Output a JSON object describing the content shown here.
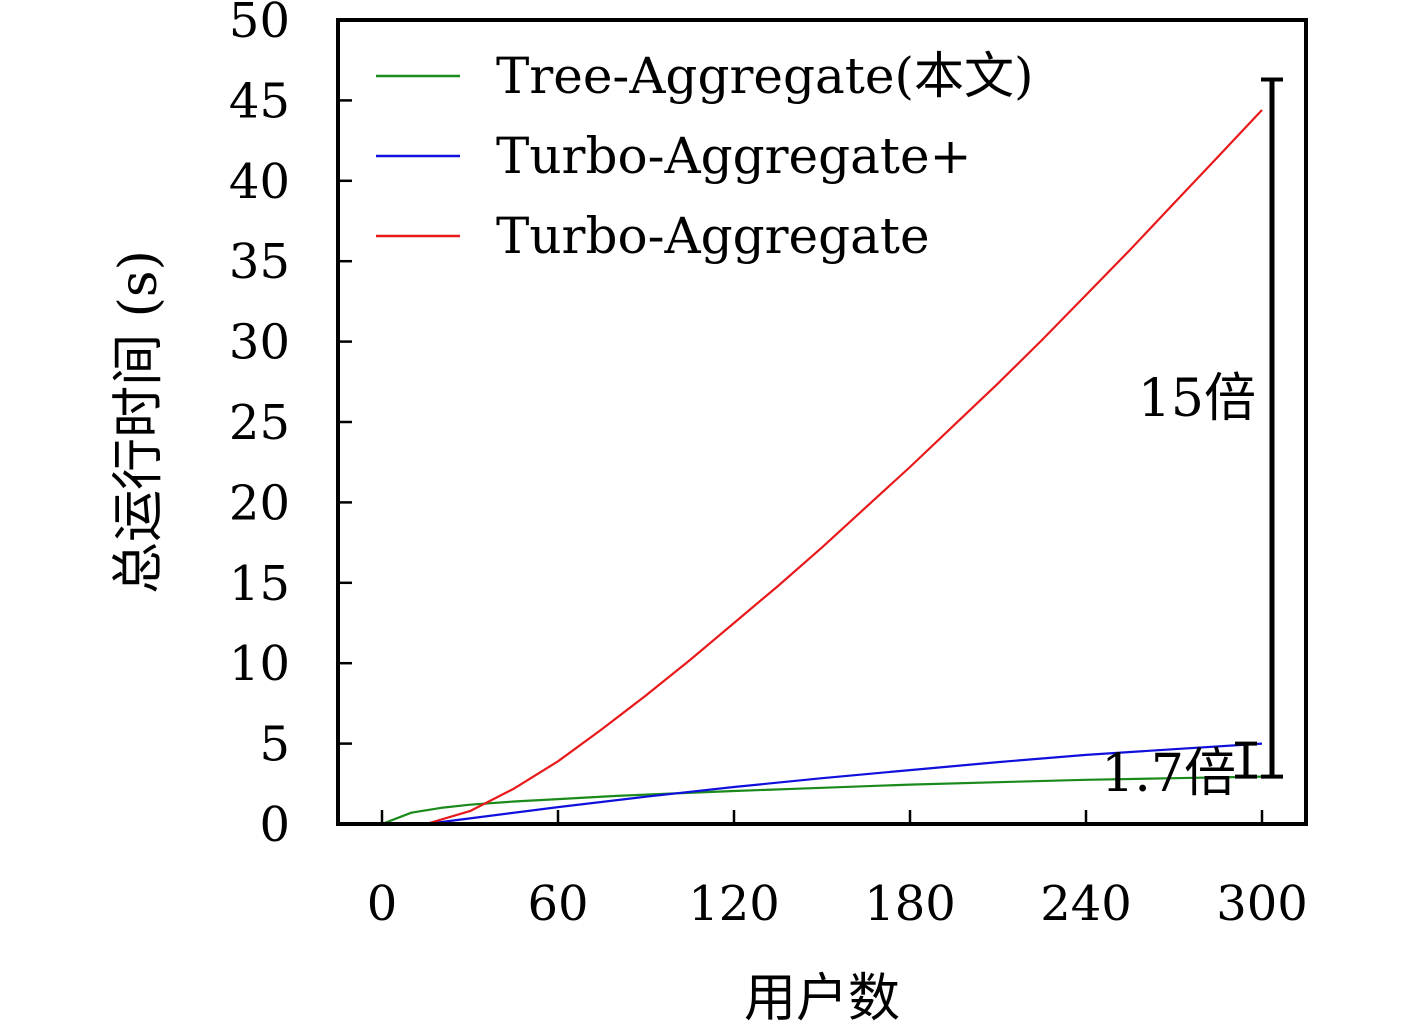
{
  "chart_data": {
    "type": "line",
    "xlabel": "用户数",
    "ylabel": "总运行时间 (s)",
    "xlim": [
      -15,
      315
    ],
    "ylim": [
      0,
      50
    ],
    "xticks": [
      0,
      60,
      120,
      180,
      240,
      300
    ],
    "yticks": [
      0,
      5,
      10,
      15,
      20,
      25,
      30,
      35,
      40,
      45,
      50
    ],
    "grid": false,
    "legend_position": "top-left",
    "series": [
      {
        "name": "Tree-Aggregate(本文)",
        "color": "#1a8a1a",
        "x": [
          0,
          10,
          20,
          30,
          45,
          60,
          80,
          100,
          120,
          150,
          180,
          210,
          240,
          270,
          300
        ],
        "y": [
          0,
          0.7,
          1.0,
          1.2,
          1.4,
          1.55,
          1.75,
          1.9,
          2.05,
          2.25,
          2.45,
          2.6,
          2.75,
          2.85,
          2.95
        ]
      },
      {
        "name": "Turbo-Aggregate+",
        "color": "#1010dd",
        "x": [
          15,
          30,
          60,
          90,
          120,
          150,
          180,
          210,
          240,
          270,
          300
        ],
        "y": [
          0,
          0.35,
          1.05,
          1.7,
          2.3,
          2.85,
          3.35,
          3.85,
          4.3,
          4.65,
          5.0
        ]
      },
      {
        "name": "Turbo-Aggregate",
        "color": "#e8191b",
        "x": [
          15,
          30,
          45,
          60,
          75,
          90,
          105,
          120,
          135,
          150,
          165,
          180,
          195,
          210,
          225,
          240,
          255,
          270,
          285,
          300
        ],
        "y": [
          0,
          0.8,
          2.2,
          3.9,
          5.9,
          8.0,
          10.2,
          12.5,
          14.8,
          17.2,
          19.7,
          22.2,
          24.8,
          27.4,
          30.1,
          32.9,
          35.7,
          38.6,
          41.5,
          44.4
        ]
      }
    ],
    "annotations": [
      {
        "text": "15倍",
        "from": 2.95,
        "to": 46.3
      },
      {
        "text": "1.7倍",
        "from": 2.95,
        "to": 5.0
      }
    ]
  }
}
